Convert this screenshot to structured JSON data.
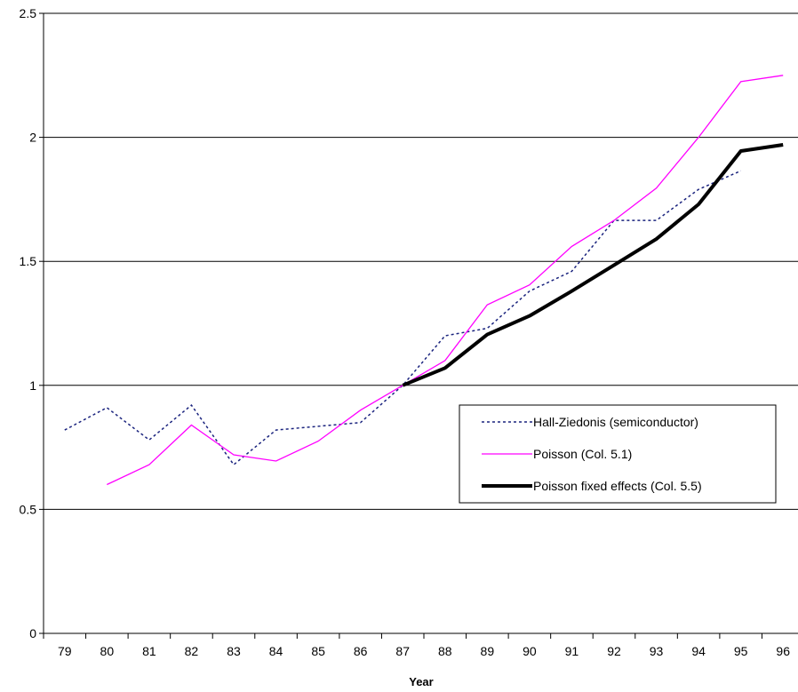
{
  "chart_data": {
    "type": "line",
    "x": [
      "79",
      "80",
      "81",
      "82",
      "83",
      "84",
      "85",
      "86",
      "87",
      "88",
      "89",
      "90",
      "91",
      "92",
      "93",
      "94",
      "95",
      "96"
    ],
    "xlabel": "Year",
    "ylabel": "",
    "ylim": [
      0,
      2.5
    ],
    "yticks": [
      "0",
      "0.5",
      "1",
      "1.5",
      "2",
      "2.5"
    ],
    "grid": "horizontal",
    "legend_position": "right-middle",
    "series": [
      {
        "name": "Hall-Ziedonis (semiconductor)",
        "color": "#1a237e",
        "style": "dotted",
        "values": [
          0.82,
          0.91,
          0.78,
          0.92,
          0.68,
          0.82,
          0.835,
          0.85,
          1.0,
          1.2,
          1.23,
          1.38,
          1.46,
          1.665,
          1.665,
          1.79,
          1.865,
          null
        ]
      },
      {
        "name": "Poisson (Col. 5.1)",
        "color": "#ff00ff",
        "style": "solid",
        "values": [
          null,
          0.6,
          0.68,
          0.84,
          0.72,
          0.695,
          0.775,
          0.9,
          1.0,
          1.1,
          1.325,
          1.405,
          1.56,
          1.665,
          1.795,
          2.0,
          2.225,
          2.25
        ]
      },
      {
        "name": "Poisson fixed effects (Col. 5.5)",
        "color": "#000000",
        "style": "thick",
        "values": [
          null,
          null,
          null,
          null,
          null,
          null,
          null,
          null,
          1.0,
          1.07,
          1.205,
          1.28,
          1.38,
          1.485,
          1.59,
          1.73,
          1.945,
          1.97
        ]
      }
    ]
  }
}
